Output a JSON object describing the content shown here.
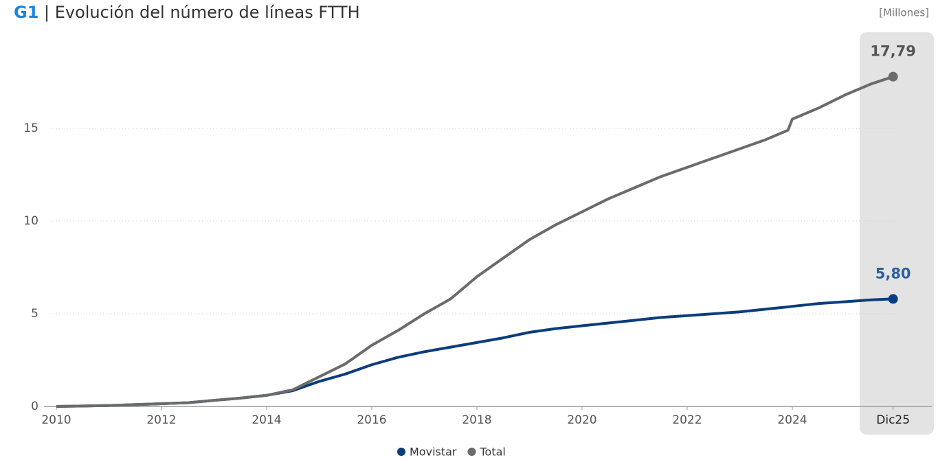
{
  "chart_data": {
    "type": "line",
    "label": "G1",
    "title": "| Evolución del número de líneas FTTH",
    "unit_label": "[Millones]",
    "x": [
      2010,
      2011,
      2012,
      2012.5,
      2013,
      2013.5,
      2014,
      2014.5,
      2015,
      2015.5,
      2016,
      2016.5,
      2017,
      2017.5,
      2018,
      2018.5,
      2019,
      2019.5,
      2020,
      2020.5,
      2021,
      2021.5,
      2022,
      2022.5,
      2023,
      2023.5,
      2023.917,
      2024,
      2024.5,
      2025,
      2025.5,
      2025.917
    ],
    "series": [
      {
        "name": "Movistar",
        "color": "#0b3d7c",
        "label_color": "#2f5f9c",
        "values": [
          0,
          0.05,
          0.15,
          0.2,
          0.33,
          0.45,
          0.6,
          0.85,
          1.35,
          1.75,
          2.25,
          2.65,
          2.95,
          3.2,
          3.45,
          3.7,
          4.0,
          4.2,
          4.35,
          4.5,
          4.65,
          4.8,
          4.9,
          5.0,
          5.1,
          5.25,
          5.37,
          5.4,
          5.55,
          5.65,
          5.75,
          5.8
        ],
        "value_labels": [
          null,
          null,
          null,
          null,
          null,
          null,
          null,
          null,
          null,
          null,
          null,
          null,
          null,
          null,
          null,
          null,
          null,
          null,
          null,
          null,
          null,
          null,
          null,
          null,
          null,
          null,
          null,
          null,
          null,
          null,
          null,
          "5,80"
        ]
      },
      {
        "name": "Total",
        "color": "#6b6b6b",
        "label_color": "#555555",
        "values": [
          0,
          0.05,
          0.15,
          0.2,
          0.33,
          0.45,
          0.6,
          0.9,
          1.6,
          2.3,
          3.3,
          4.1,
          5.0,
          5.8,
          7.0,
          8.0,
          9.0,
          9.8,
          10.5,
          11.2,
          11.8,
          12.4,
          12.9,
          13.4,
          13.9,
          14.4,
          14.9,
          15.5,
          16.1,
          16.8,
          17.4,
          17.79
        ],
        "value_labels": [
          null,
          null,
          null,
          null,
          null,
          null,
          null,
          null,
          null,
          null,
          null,
          null,
          null,
          null,
          null,
          null,
          null,
          null,
          null,
          null,
          null,
          null,
          null,
          null,
          null,
          null,
          null,
          null,
          null,
          null,
          null,
          "17,79"
        ]
      }
    ],
    "xlim": [
      2010,
      2026
    ],
    "xticks": [
      2010,
      2012,
      2014,
      2016,
      2018,
      2020,
      2022,
      2024,
      {
        "value": 2025.917,
        "label": "Dic25"
      }
    ],
    "ylim": [
      0,
      19
    ],
    "yticks": [
      0,
      5,
      10,
      15
    ],
    "grid": true,
    "legend": "bottom"
  }
}
